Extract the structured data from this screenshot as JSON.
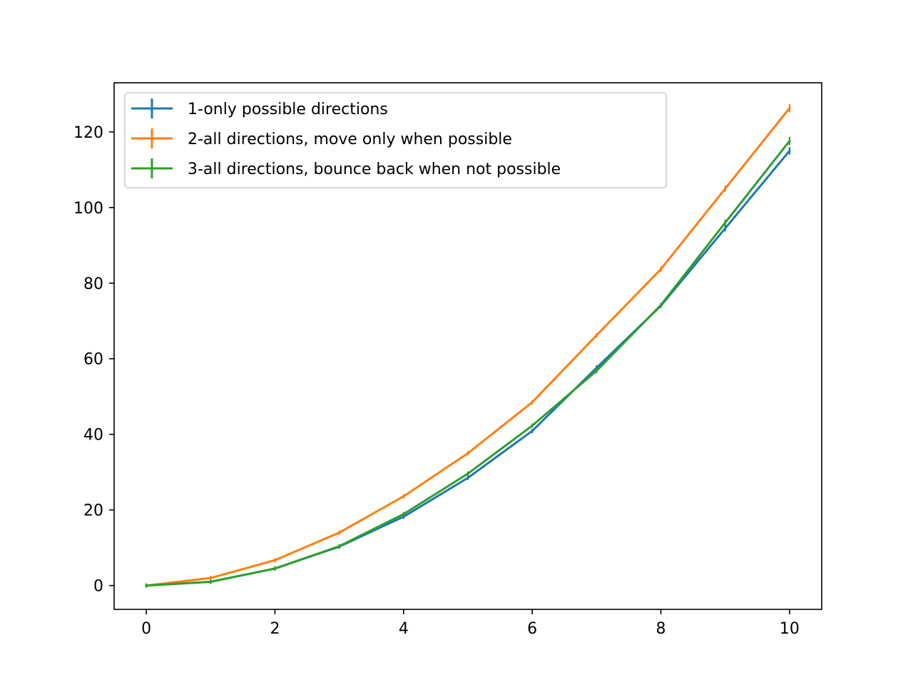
{
  "chart_data": {
    "type": "line",
    "title": "",
    "xlabel": "",
    "ylabel": "",
    "xlim": [
      -0.5,
      10.5
    ],
    "ylim": [
      -6.3,
      133
    ],
    "xticks": [
      0,
      2,
      4,
      6,
      8,
      10
    ],
    "yticks": [
      0,
      20,
      40,
      60,
      80,
      100,
      120
    ],
    "grid": false,
    "legend_position": "top-left",
    "x": [
      0,
      1,
      2,
      3,
      4,
      5,
      6,
      7,
      8,
      9,
      10
    ],
    "series": [
      {
        "name": "1-only possible directions",
        "color": "#1f77b4",
        "values": [
          0,
          1.0,
          4.5,
          10.3,
          18.2,
          28.5,
          40.9,
          57.6,
          74.0,
          94.5,
          115.0
        ],
        "errors": [
          0.05,
          0.1,
          0.15,
          0.2,
          0.3,
          0.4,
          0.5,
          0.7,
          0.6,
          0.8,
          1.0
        ]
      },
      {
        "name": "2-all directions, move only when possible",
        "color": "#ff7f0e",
        "values": [
          0,
          2.0,
          6.7,
          14.0,
          23.6,
          35.0,
          48.5,
          66.2,
          83.7,
          105.0,
          126.3
        ],
        "errors": [
          0.05,
          0.1,
          0.15,
          0.2,
          0.3,
          0.4,
          0.5,
          0.6,
          0.7,
          0.8,
          1.1
        ]
      },
      {
        "name": "3-all directions, bounce back when not possible",
        "color": "#2ca02c",
        "values": [
          0,
          1.0,
          4.5,
          10.4,
          18.9,
          29.6,
          42.3,
          56.8,
          74.2,
          96.0,
          117.6
        ],
        "errors": [
          0.05,
          0.1,
          0.15,
          0.2,
          0.3,
          0.4,
          0.5,
          0.6,
          0.6,
          0.8,
          1.1
        ]
      }
    ]
  }
}
